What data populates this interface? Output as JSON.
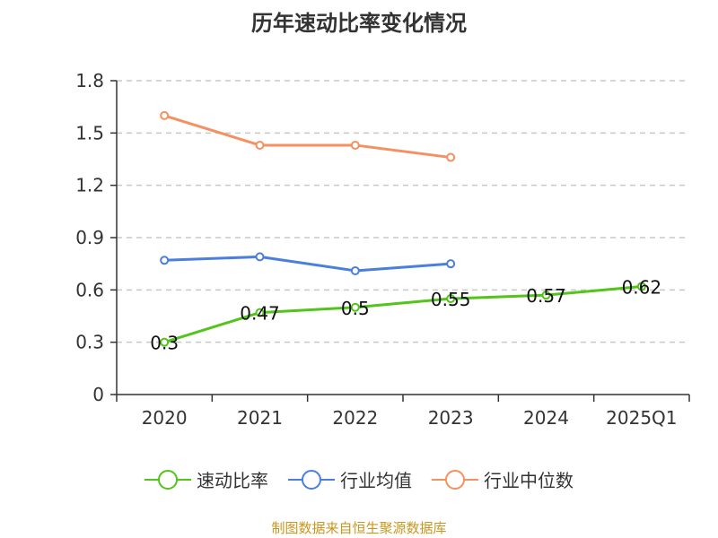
{
  "chart_data": {
    "type": "line",
    "title": "历年速动比率变化情况",
    "categories": [
      "2020",
      "2021",
      "2022",
      "2023",
      "2024",
      "2025Q1"
    ],
    "ylim": [
      0,
      1.8
    ],
    "yticks": [
      "0",
      "0.3",
      "0.6",
      "0.9",
      "1.2",
      "1.5",
      "1.8"
    ],
    "grid": true,
    "legend_position": "bottom",
    "series": [
      {
        "name": "速动比率",
        "color": "#52c41a",
        "values": [
          0.3,
          0.47,
          0.5,
          0.55,
          0.57,
          0.62
        ],
        "labels": [
          "0.3",
          "0.47",
          "0.5",
          "0.55",
          "0.57",
          "0.62"
        ]
      },
      {
        "name": "行业均值",
        "color": "#4a7fdc",
        "values": [
          0.77,
          0.79,
          0.71,
          0.75,
          null,
          null
        ]
      },
      {
        "name": "行业中位数",
        "color": "#f59060",
        "values": [
          1.6,
          1.43,
          1.43,
          1.36,
          null,
          null
        ]
      }
    ]
  },
  "source": "制图数据来自恒生聚源数据库"
}
